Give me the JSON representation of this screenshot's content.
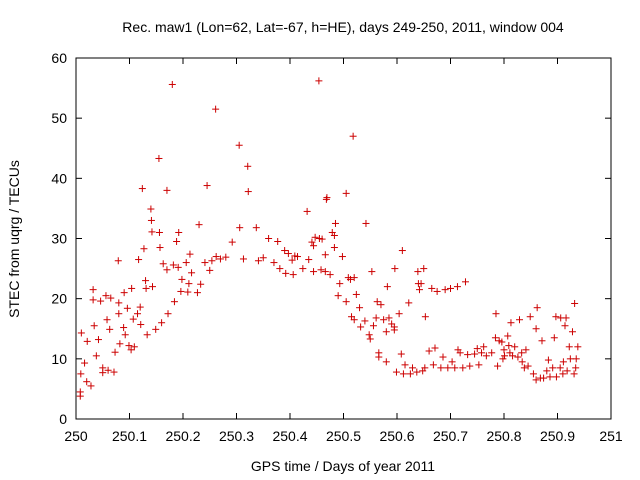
{
  "chart_data": {
    "type": "scatter",
    "title": "Rec. maw1 (Lon=62, Lat=-67, h=HE), days 249-250, 2011, window 004",
    "xlabel": "GPS time / Days of year 2011",
    "ylabel": "STEC from uqrg / TECUs",
    "xlim": [
      250,
      251
    ],
    "ylim": [
      0,
      60
    ],
    "xticks": [
      250,
      250.1,
      250.2,
      250.3,
      250.4,
      250.5,
      250.6,
      250.7,
      250.8,
      250.9,
      251
    ],
    "xtick_labels": [
      "250",
      "250.1",
      "250.2",
      "250.3",
      "250.4",
      "250.5",
      "250.6",
      "250.7",
      "250.8",
      "250.9",
      "251"
    ],
    "yticks": [
      0,
      10,
      20,
      30,
      40,
      50,
      60
    ],
    "ytick_labels": [
      "0",
      "10",
      "20",
      "30",
      "40",
      "50",
      "60"
    ],
    "marker": "+",
    "color": "#cc0000",
    "series": [
      {
        "name": "STEC",
        "points": [
          [
            250.008,
            3.8
          ],
          [
            250.008,
            4.5
          ],
          [
            250.009,
            7.5
          ],
          [
            250.01,
            14.3
          ],
          [
            250.016,
            9.3
          ],
          [
            250.02,
            6.2
          ],
          [
            250.021,
            12.9
          ],
          [
            250.028,
            5.5
          ],
          [
            250.032,
            21.5
          ],
          [
            250.032,
            19.8
          ],
          [
            250.034,
            15.5
          ],
          [
            250.038,
            10.5
          ],
          [
            250.042,
            13.2
          ],
          [
            250.046,
            19.6
          ],
          [
            250.05,
            8.5
          ],
          [
            250.05,
            7.7
          ],
          [
            250.056,
            20.5
          ],
          [
            250.058,
            16.5
          ],
          [
            250.06,
            8.1
          ],
          [
            250.063,
            14.9
          ],
          [
            250.065,
            20.1
          ],
          [
            250.071,
            7.8
          ],
          [
            250.073,
            11.1
          ],
          [
            250.079,
            26.3
          ],
          [
            250.08,
            17.5
          ],
          [
            250.08,
            19.3
          ],
          [
            250.082,
            12.5
          ],
          [
            250.089,
            15.2
          ],
          [
            250.09,
            21.0
          ],
          [
            250.092,
            14.0
          ],
          [
            250.096,
            18.4
          ],
          [
            250.099,
            12.2
          ],
          [
            250.103,
            11.5
          ],
          [
            250.104,
            21.7
          ],
          [
            250.107,
            16.6
          ],
          [
            250.109,
            12.0
          ],
          [
            250.115,
            17.5
          ],
          [
            250.117,
            26.5
          ],
          [
            250.12,
            18.6
          ],
          [
            250.121,
            15.7
          ],
          [
            250.124,
            38.3
          ],
          [
            250.127,
            28.3
          ],
          [
            250.13,
            23.0
          ],
          [
            250.131,
            21.7
          ],
          [
            250.133,
            14.0
          ],
          [
            250.14,
            34.9
          ],
          [
            250.141,
            33.0
          ],
          [
            250.142,
            31.1
          ],
          [
            250.143,
            22.0
          ],
          [
            250.149,
            14.9
          ],
          [
            250.155,
            43.3
          ],
          [
            250.156,
            31.0
          ],
          [
            250.157,
            28.5
          ],
          [
            250.16,
            16.0
          ],
          [
            250.163,
            25.8
          ],
          [
            250.17,
            38.0
          ],
          [
            250.17,
            24.8
          ],
          [
            250.172,
            17.5
          ],
          [
            250.18,
            55.6
          ],
          [
            250.182,
            25.6
          ],
          [
            250.184,
            19.5
          ],
          [
            250.188,
            29.5
          ],
          [
            250.191,
            25.2
          ],
          [
            250.192,
            31.0
          ],
          [
            250.196,
            21.2
          ],
          [
            250.198,
            23.2
          ],
          [
            250.206,
            26.0
          ],
          [
            250.209,
            21.1
          ],
          [
            250.211,
            22.5
          ],
          [
            250.213,
            27.4
          ],
          [
            250.216,
            24.3
          ],
          [
            250.227,
            21.0
          ],
          [
            250.23,
            32.3
          ],
          [
            250.233,
            22.4
          ],
          [
            250.241,
            26.0
          ],
          [
            250.245,
            38.8
          ],
          [
            250.25,
            24.7
          ],
          [
            250.254,
            26.3
          ],
          [
            250.261,
            51.5
          ],
          [
            250.262,
            27.0
          ],
          [
            250.27,
            26.6
          ],
          [
            250.28,
            26.9
          ],
          [
            250.292,
            29.4
          ],
          [
            250.305,
            45.5
          ],
          [
            250.306,
            31.8
          ],
          [
            250.313,
            26.6
          ],
          [
            250.321,
            42.0
          ],
          [
            250.322,
            37.8
          ],
          [
            250.337,
            31.8
          ],
          [
            250.341,
            26.3
          ],
          [
            250.35,
            26.8
          ],
          [
            250.36,
            30.0
          ],
          [
            250.37,
            26.0
          ],
          [
            250.377,
            29.5
          ],
          [
            250.381,
            25.0
          ],
          [
            250.39,
            28.0
          ],
          [
            250.392,
            24.2
          ],
          [
            250.397,
            27.5
          ],
          [
            250.404,
            26.4
          ],
          [
            250.406,
            24.0
          ],
          [
            250.409,
            27.1
          ],
          [
            250.414,
            27.0
          ],
          [
            250.424,
            25.0
          ],
          [
            250.432,
            34.5
          ],
          [
            250.435,
            26.5
          ],
          [
            250.441,
            29.4
          ],
          [
            250.444,
            24.5
          ],
          [
            250.444,
            28.8
          ],
          [
            250.447,
            30.2
          ],
          [
            250.454,
            56.2
          ],
          [
            250.455,
            30.0
          ],
          [
            250.458,
            24.8
          ],
          [
            250.46,
            29.9
          ],
          [
            250.466,
            27.3
          ],
          [
            250.466,
            24.5
          ],
          [
            250.468,
            36.5
          ],
          [
            250.469,
            36.8
          ],
          [
            250.475,
            24.0
          ],
          [
            250.479,
            31.0
          ],
          [
            250.483,
            30.5
          ],
          [
            250.483,
            28.5
          ],
          [
            250.485,
            32.5
          ],
          [
            250.49,
            20.5
          ],
          [
            250.493,
            22.5
          ],
          [
            250.498,
            27.0
          ],
          [
            250.505,
            37.5
          ],
          [
            250.505,
            19.5
          ],
          [
            250.509,
            23.5
          ],
          [
            250.513,
            23.2
          ],
          [
            250.515,
            17.0
          ],
          [
            250.518,
            47.0
          ],
          [
            250.52,
            23.5
          ],
          [
            250.52,
            16.5
          ],
          [
            250.524,
            20.7
          ],
          [
            250.53,
            18.5
          ],
          [
            250.532,
            15.3
          ],
          [
            250.54,
            16.3
          ],
          [
            250.542,
            32.5
          ],
          [
            250.548,
            14.0
          ],
          [
            250.55,
            13.3
          ],
          [
            250.553,
            24.5
          ],
          [
            250.556,
            15.5
          ],
          [
            250.561,
            16.8
          ],
          [
            250.563,
            19.5
          ],
          [
            250.566,
            11.0
          ],
          [
            250.566,
            10.3
          ],
          [
            250.57,
            19.0
          ],
          [
            250.575,
            16.5
          ],
          [
            250.58,
            14.5
          ],
          [
            250.58,
            9.5
          ],
          [
            250.582,
            22.0
          ],
          [
            250.585,
            16.8
          ],
          [
            250.59,
            15.8
          ],
          [
            250.595,
            14.8
          ],
          [
            250.595,
            15.3
          ],
          [
            250.596,
            25.0
          ],
          [
            250.599,
            7.8
          ],
          [
            250.604,
            17.5
          ],
          [
            250.608,
            10.8
          ],
          [
            250.61,
            28.0
          ],
          [
            250.612,
            7.5
          ],
          [
            250.615,
            9.0
          ],
          [
            250.622,
            19.3
          ],
          [
            250.625,
            7.5
          ],
          [
            250.629,
            8.5
          ],
          [
            250.637,
            7.8
          ],
          [
            250.639,
            24.5
          ],
          [
            250.64,
            22.5
          ],
          [
            250.642,
            21.5
          ],
          [
            250.645,
            22.5
          ],
          [
            250.648,
            8.0
          ],
          [
            250.65,
            25.0
          ],
          [
            250.652,
            8.5
          ],
          [
            250.653,
            17.0
          ],
          [
            250.66,
            11.3
          ],
          [
            250.665,
            21.7
          ],
          [
            250.668,
            9.0
          ],
          [
            250.671,
            11.8
          ],
          [
            250.675,
            21.2
          ],
          [
            250.682,
            8.5
          ],
          [
            250.686,
            10.3
          ],
          [
            250.69,
            21.5
          ],
          [
            250.695,
            8.5
          ],
          [
            250.7,
            21.7
          ],
          [
            250.703,
            9.5
          ],
          [
            250.708,
            8.5
          ],
          [
            250.713,
            22.0
          ],
          [
            250.714,
            11.5
          ],
          [
            250.718,
            11.0
          ],
          [
            250.723,
            8.5
          ],
          [
            250.728,
            22.8
          ],
          [
            250.732,
            10.7
          ],
          [
            250.736,
            8.8
          ],
          [
            250.745,
            10.8
          ],
          [
            250.75,
            11.7
          ],
          [
            250.753,
            9.0
          ],
          [
            250.758,
            11.0
          ],
          [
            250.762,
            12.0
          ],
          [
            250.767,
            10.5
          ],
          [
            250.777,
            11.0
          ],
          [
            250.784,
            13.5
          ],
          [
            250.785,
            17.5
          ],
          [
            250.788,
            8.8
          ],
          [
            250.791,
            13.0
          ],
          [
            250.796,
            12.8
          ],
          [
            250.798,
            10.0
          ],
          [
            250.8,
            11.5
          ],
          [
            250.801,
            10.5
          ],
          [
            250.807,
            13.8
          ],
          [
            250.809,
            12.2
          ],
          [
            250.811,
            11.0
          ],
          [
            250.813,
            16.0
          ],
          [
            250.816,
            10.5
          ],
          [
            250.82,
            12.0
          ],
          [
            250.826,
            10.3
          ],
          [
            250.829,
            16.5
          ],
          [
            250.833,
            11.0
          ],
          [
            250.834,
            9.5
          ],
          [
            250.838,
            8.5
          ],
          [
            250.841,
            11.5
          ],
          [
            250.845,
            8.8
          ],
          [
            250.849,
            17.0
          ],
          [
            250.855,
            7.5
          ],
          [
            250.86,
            15.0
          ],
          [
            250.86,
            6.5
          ],
          [
            250.862,
            18.5
          ],
          [
            250.868,
            6.8
          ],
          [
            250.871,
            13.0
          ],
          [
            250.874,
            6.8
          ],
          [
            250.88,
            8.0
          ],
          [
            250.883,
            9.8
          ],
          [
            250.886,
            7.0
          ],
          [
            250.891,
            8.5
          ],
          [
            250.894,
            13.5
          ],
          [
            250.897,
            17.0
          ],
          [
            250.898,
            7.0
          ],
          [
            250.905,
            8.5
          ],
          [
            250.906,
            16.8
          ],
          [
            250.91,
            7.5
          ],
          [
            250.911,
            9.5
          ],
          [
            250.914,
            15.5
          ],
          [
            250.916,
            16.8
          ],
          [
            250.918,
            8.0
          ],
          [
            250.922,
            12.0
          ],
          [
            250.924,
            10.0
          ],
          [
            250.928,
            14.5
          ],
          [
            250.931,
            7.5
          ],
          [
            250.932,
            19.2
          ],
          [
            250.934,
            8.5
          ],
          [
            250.935,
            10.0
          ],
          [
            250.938,
            12.0
          ]
        ]
      }
    ]
  }
}
